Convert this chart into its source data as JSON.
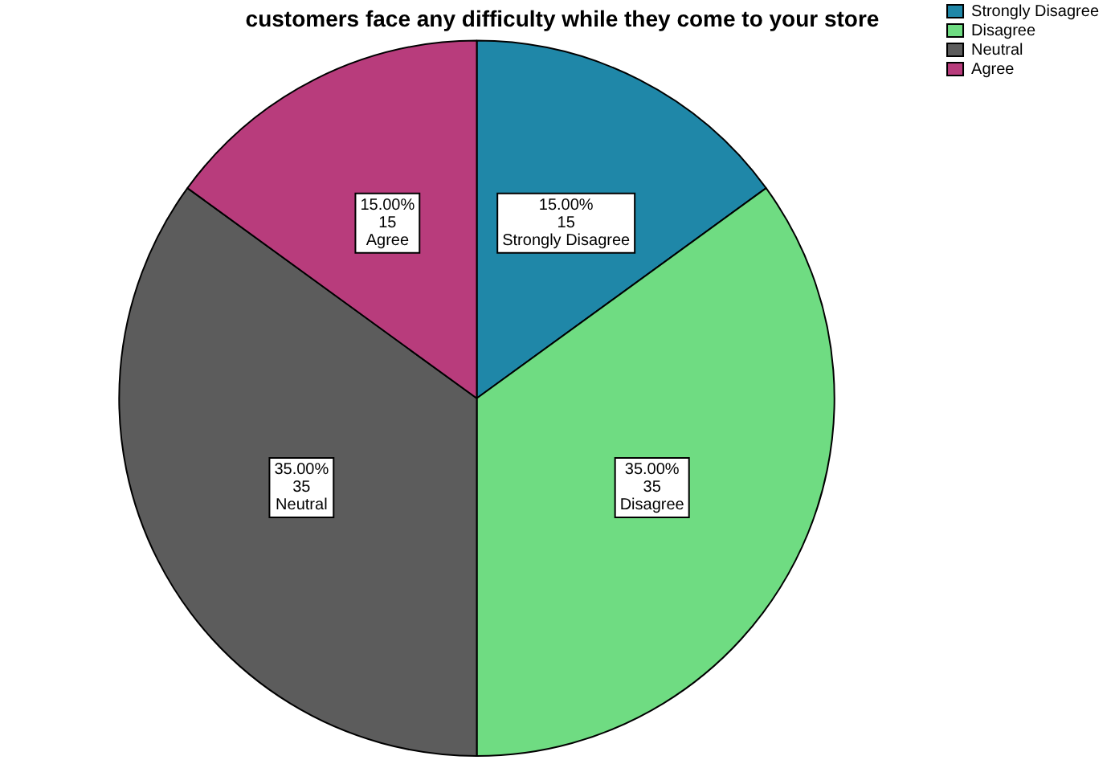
{
  "chart_data": {
    "type": "pie",
    "title": "customers face any difficulty while they come to your store",
    "categories": [
      "Strongly Disagree",
      "Disagree",
      "Neutral",
      "Agree"
    ],
    "values": [
      15,
      35,
      35,
      15
    ],
    "value_labels": [
      "15.00%\n15",
      "35.00%\n35",
      "35.00%\n35",
      "15.00%\n15"
    ],
    "colors": [
      "#1f87a8",
      "#6fdc82",
      "#5c5c5c",
      "#b83c7c"
    ],
    "legend": "top right"
  }
}
